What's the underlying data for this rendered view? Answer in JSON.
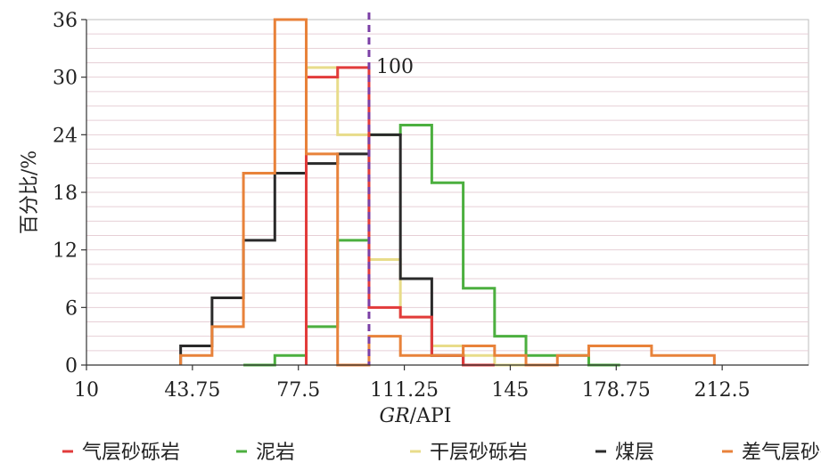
{
  "chart_data": {
    "type": "histogram",
    "xlabel_italic": "GR",
    "xlabel_rest": "/API",
    "ylabel": "百分比/%",
    "xlim": [
      10,
      240
    ],
    "ylim": [
      0,
      36
    ],
    "x_ticks": [
      10,
      43.75,
      77.5,
      111.25,
      145,
      178.75,
      212.5
    ],
    "x_tick_labels": [
      "10",
      "43.75",
      "77.5",
      "111.25",
      "145",
      "178.75",
      "212.5"
    ],
    "y_ticks": [
      0,
      6,
      12,
      18,
      24,
      30,
      36
    ],
    "y_tick_labels": [
      "0",
      "6",
      "12",
      "18",
      "24",
      "30",
      "36"
    ],
    "grid": "horizontal",
    "legend_position": "bottom",
    "bin_width": 10,
    "annotation": {
      "x": 100,
      "label": "100",
      "style": "dashed",
      "color": "#7b3fa6"
    },
    "series": [
      {
        "name": "泥岩",
        "color": "#4caf3f",
        "x": [
          60,
          70,
          80,
          90,
          100,
          110,
          120,
          130,
          140,
          150,
          160,
          170
        ],
        "values": [
          0,
          1,
          4,
          13,
          24,
          25,
          19,
          8,
          3,
          1,
          1,
          0
        ]
      },
      {
        "name": "干层砂砾岩",
        "color": "#e8dc8a",
        "x": [
          80,
          90,
          100,
          110,
          120,
          130,
          140
        ],
        "values": [
          31,
          24,
          11,
          5,
          2,
          1,
          0
        ]
      },
      {
        "name": "煤层",
        "color": "#2a2a2a",
        "x": [
          40,
          50,
          60,
          70,
          80,
          90,
          100,
          110,
          120
        ],
        "values": [
          2,
          7,
          13,
          20,
          21,
          22,
          24,
          9,
          1
        ]
      },
      {
        "name": "气层砂砾岩",
        "color": "#e23b3b",
        "x": [
          80,
          90,
          100,
          110,
          120,
          130
        ],
        "values": [
          30,
          31,
          6,
          5,
          1,
          0
        ]
      },
      {
        "name": "差气层砂砾岩",
        "color": "#e8823a",
        "x": [
          40,
          50,
          60,
          70,
          80,
          90,
          100,
          110,
          120,
          130,
          140,
          150,
          160,
          170,
          180,
          190,
          200
        ],
        "values": [
          1,
          4,
          20,
          36,
          22,
          0,
          3,
          1,
          1,
          2,
          1,
          0,
          1,
          2,
          2,
          1,
          1
        ]
      }
    ],
    "legend": [
      {
        "name": "气层砂砾岩",
        "color": "#e23b3b"
      },
      {
        "name": "泥岩",
        "color": "#4caf3f"
      },
      {
        "name": "干层砂砾岩",
        "color": "#e8dc8a"
      },
      {
        "name": "煤层",
        "color": "#2a2a2a"
      },
      {
        "name": "差气层砂砾岩",
        "color": "#e8823a"
      }
    ]
  }
}
